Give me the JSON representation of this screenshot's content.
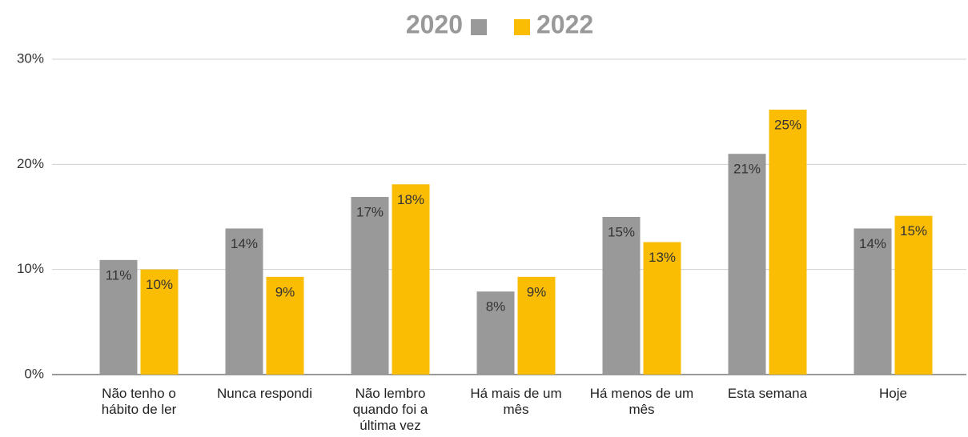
{
  "chart_data": {
    "type": "bar",
    "categories": [
      "Não tenho o hábito de ler",
      "Nunca respondi",
      "Não lembro quando foi a última vez",
      "Há mais de um mês",
      "Há menos de um mês",
      "Esta semana",
      "Hoje"
    ],
    "series": [
      {
        "name": "2020",
        "color": "#999999",
        "values": [
          10.9,
          13.9,
          16.9,
          7.9,
          15,
          21,
          13.9
        ],
        "value_labels": [
          "11%",
          "14%",
          "17%",
          "8%",
          "15%",
          "21%",
          "14%"
        ]
      },
      {
        "name": "2022",
        "color": "#fbbc04",
        "values": [
          10,
          9.3,
          18.1,
          9.3,
          12.6,
          25.2,
          15.1
        ],
        "value_labels": [
          "10%",
          "9%",
          "18%",
          "9%",
          "13%",
          "25%",
          "15%"
        ]
      }
    ],
    "ylim": [
      0,
      30
    ],
    "yticks": [
      {
        "value": 0,
        "label": "0%"
      },
      {
        "value": 10,
        "label": "10%"
      },
      {
        "value": 20,
        "label": "20%"
      },
      {
        "value": 30,
        "label": "30%"
      }
    ],
    "grid": true,
    "legend": "top"
  }
}
